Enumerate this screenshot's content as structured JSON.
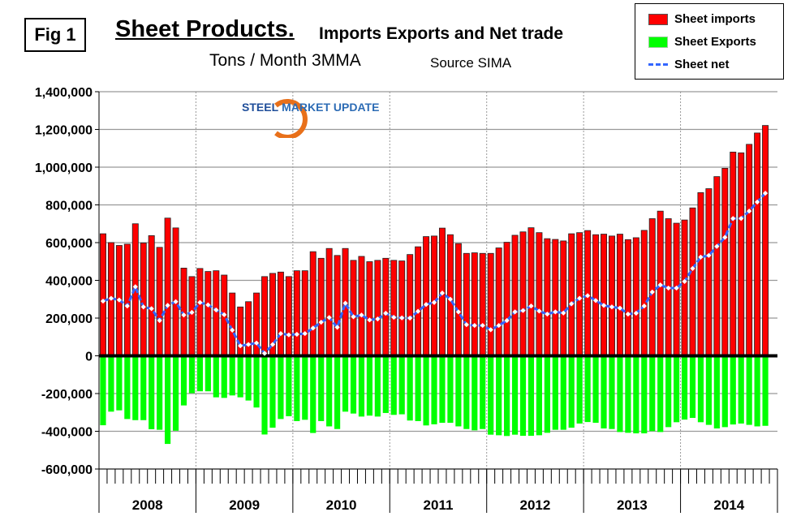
{
  "header": {
    "fig_label": "Fig 1",
    "title": "Sheet Products.",
    "subtitle": "Imports Exports and Net trade",
    "units": "Tons / Month 3MMA",
    "source": "Source SIMA"
  },
  "logo": {
    "text_bold": "STEEL",
    "text_rest": "MARKET UPDATE"
  },
  "colors": {
    "imports": "#ff0000",
    "exports": "#00ff00",
    "net": "#3366ff"
  },
  "chart_data": {
    "type": "bar",
    "title": "Sheet Products. Imports Exports and Net trade",
    "ylabel": "Tons / Month 3MMA",
    "ylim": [
      -600000,
      1400000
    ],
    "yticks": [
      1400000,
      1200000,
      1000000,
      800000,
      600000,
      400000,
      200000,
      0,
      -200000,
      -400000,
      -600000
    ],
    "ytick_labels": [
      "1,400,000",
      "1,200,000",
      "1,000,000",
      "800,000",
      "600,000",
      "400,000",
      "200,000",
      "0",
      "-200,000",
      "-400,000",
      "-600,000"
    ],
    "years": [
      "2008",
      "2009",
      "2010",
      "2011",
      "2012",
      "2013",
      "2014"
    ],
    "months_per_year": 12,
    "legend": [
      "Sheet imports",
      "Sheet Exports",
      "Sheet net"
    ],
    "legend_placement": "top-right",
    "series": [
      {
        "name": "Sheet imports",
        "type": "bar",
        "values": [
          647,
          600,
          585,
          592,
          700,
          598,
          637,
          575,
          730,
          678,
          465,
          420,
          463,
          447,
          451,
          428,
          333,
          259,
          287,
          333,
          420,
          437,
          444,
          420,
          451,
          451,
          552,
          517,
          569,
          532,
          569,
          506,
          527,
          499,
          506,
          517,
          506,
          503,
          537,
          578,
          632,
          635,
          677,
          642,
          595,
          543,
          546,
          543,
          543,
          572,
          602,
          639,
          657,
          679,
          653,
          621,
          617,
          609,
          647,
          653,
          664,
          642,
          645,
          635,
          645,
          616,
          626,
          665,
          727,
          767,
          727,
          703,
          720,
          784,
          865,
          886,
          950,
          994,
          1080,
          1076,
          1121,
          1181,
          1221
        ]
      },
      {
        "name": "Sheet Exports",
        "type": "bar",
        "values": [
          -368,
          -296,
          -289,
          -335,
          -341,
          -341,
          -389,
          -392,
          -467,
          -397,
          -263,
          -198,
          -188,
          -188,
          -220,
          -223,
          -210,
          -220,
          -237,
          -274,
          -417,
          -381,
          -335,
          -320,
          -346,
          -339,
          -409,
          -346,
          -374,
          -388,
          -296,
          -306,
          -322,
          -317,
          -322,
          -303,
          -313,
          -310,
          -343,
          -346,
          -369,
          -363,
          -355,
          -355,
          -374,
          -388,
          -395,
          -388,
          -418,
          -421,
          -425,
          -418,
          -424,
          -424,
          -421,
          -408,
          -392,
          -392,
          -381,
          -359,
          -351,
          -355,
          -385,
          -388,
          -404,
          -408,
          -411,
          -411,
          -399,
          -404,
          -378,
          -352,
          -338,
          -329,
          -352,
          -366,
          -385,
          -378,
          -364,
          -359,
          -366,
          -374,
          -371
        ]
      },
      {
        "name": "Sheet net",
        "type": "line",
        "values": [
          290,
          305,
          296,
          264,
          366,
          259,
          250,
          187,
          267,
          287,
          216,
          230,
          283,
          270,
          243,
          218,
          136,
          53,
          60,
          68,
          13,
          60,
          118,
          111,
          114,
          118,
          147,
          178,
          203,
          151,
          279,
          207,
          216,
          190,
          195,
          226,
          204,
          201,
          200,
          236,
          272,
          283,
          333,
          300,
          233,
          165,
          161,
          161,
          138,
          161,
          187,
          233,
          240,
          264,
          237,
          221,
          233,
          227,
          276,
          305,
          319,
          293,
          267,
          259,
          253,
          221,
          226,
          264,
          338,
          376,
          359,
          359,
          394,
          463,
          523,
          532,
          580,
          628,
          728,
          728,
          767,
          815,
          862
        ]
      }
    ],
    "value_unit": "thousand tons"
  }
}
